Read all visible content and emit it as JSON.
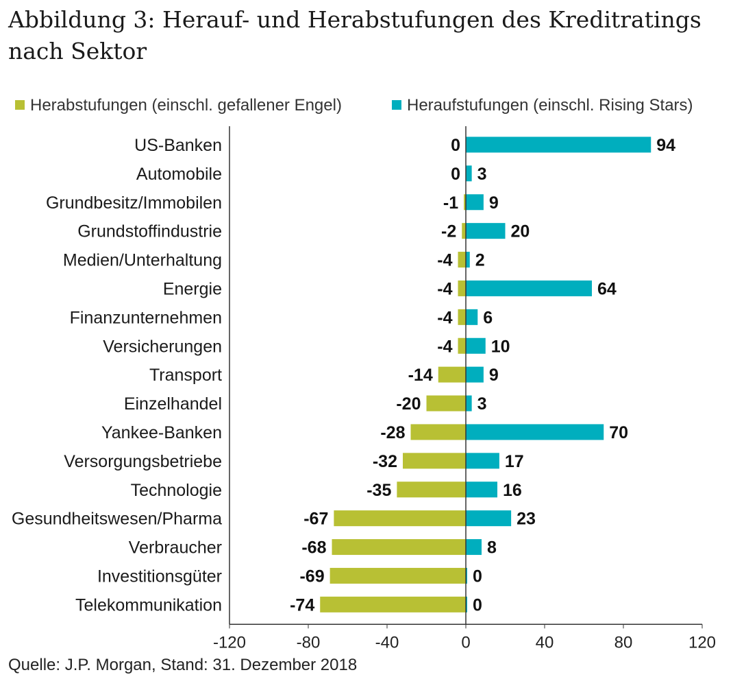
{
  "title": "Abbildung 3: Herauf- und Herabstufungen des Kreditratings nach Sektor",
  "source": "Quelle: J.P. Morgan, Stand: 31. Dezember 2018",
  "colors": {
    "downgrade": "#b8c034",
    "upgrade": "#00aebe",
    "axis": "#333333"
  },
  "chart_data": {
    "type": "bar",
    "orientation": "horizontal",
    "title": "Abbildung 3: Herauf- und Herabstufungen des Kreditratings nach Sektor",
    "xlim": [
      -120,
      120
    ],
    "xticks": [
      "-120",
      "-80",
      "-40",
      "0",
      "40",
      "80",
      "120"
    ],
    "legend_position": "top",
    "categories": [
      "US-Banken",
      "Automobile",
      "Grundbesitz/Immobilen",
      "Grundstoffindustrie",
      "Medien/Unterhaltung",
      "Energie",
      "Finanzunternehmen",
      "Versicherungen",
      "Transport",
      "Einzelhandel",
      "Yankee-Banken",
      "Versorgungsbetriebe",
      "Technologie",
      "Gesundheitswesen/Pharma",
      "Verbraucher",
      "Investitionsgüter",
      "Telekommunikation"
    ],
    "series": [
      {
        "name": "Herabstufungen (einschl. gefallener Engel)",
        "values": [
          0,
          0,
          -1,
          -2,
          -4,
          -4,
          -4,
          -4,
          -14,
          -20,
          -28,
          -32,
          -35,
          -67,
          -68,
          -69,
          -74
        ]
      },
      {
        "name": "Heraufstufungen (einschl. Rising Stars)",
        "values": [
          94,
          3,
          9,
          20,
          2,
          64,
          6,
          10,
          9,
          3,
          70,
          17,
          16,
          23,
          8,
          0,
          0
        ]
      }
    ]
  }
}
